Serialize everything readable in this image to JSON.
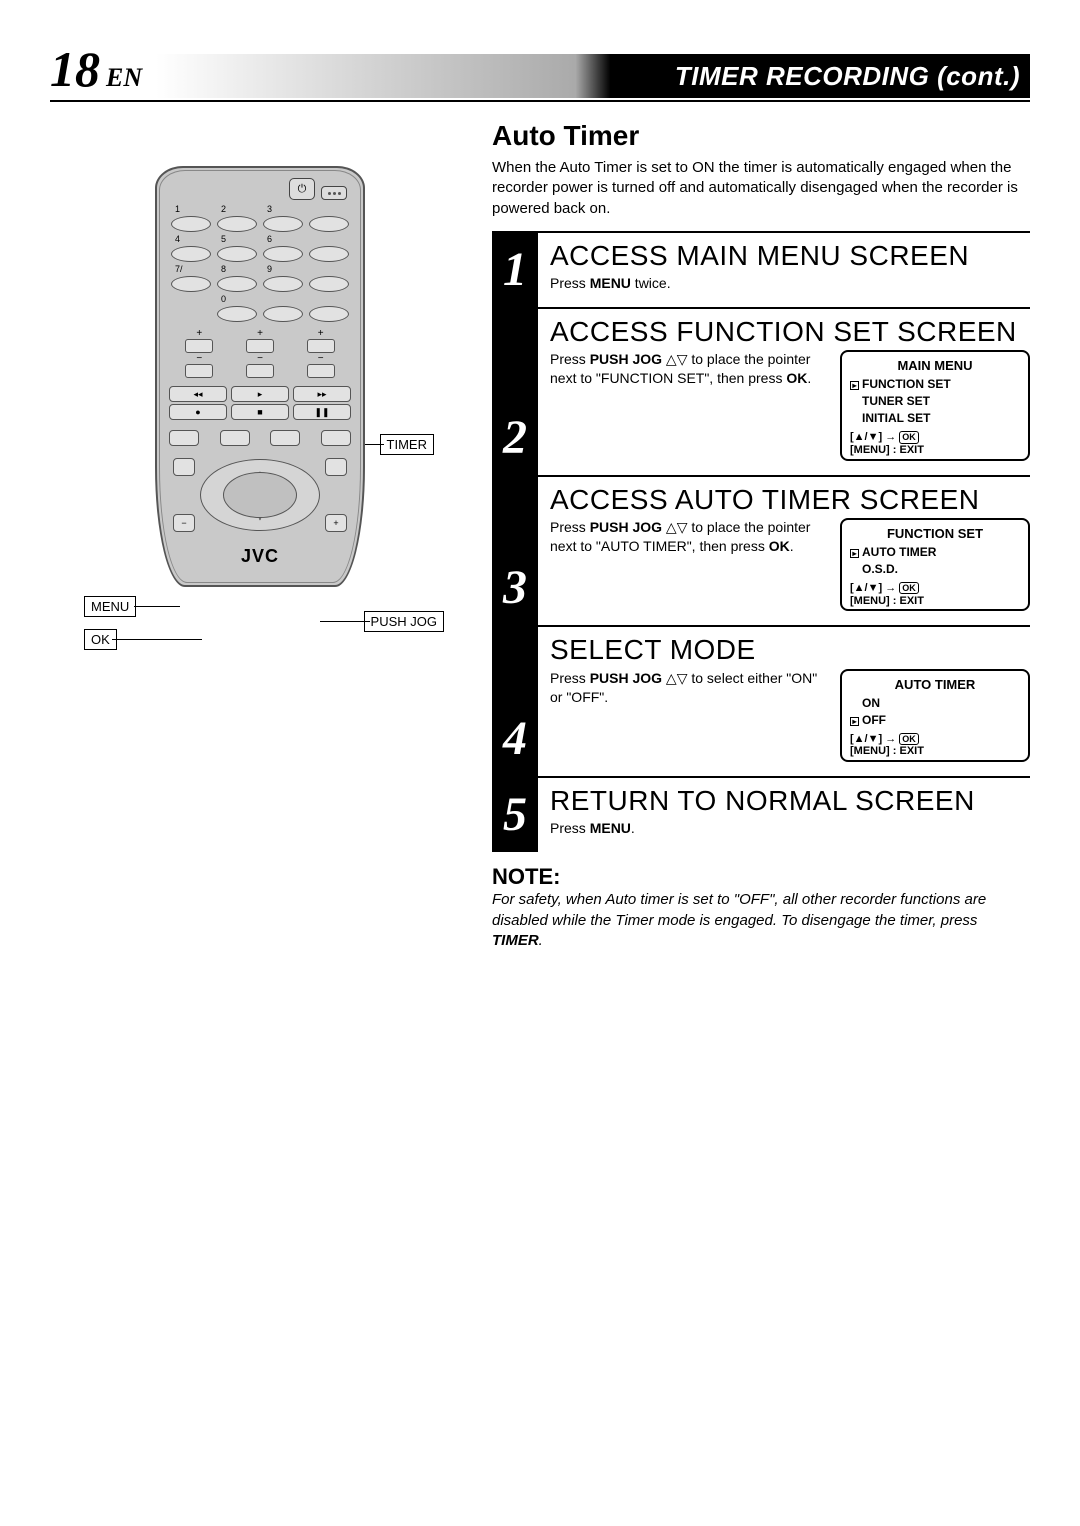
{
  "header": {
    "page_number": "18",
    "lang": "EN",
    "title": "TIMER RECORDING (cont.)"
  },
  "section": {
    "title": "Auto Timer",
    "intro": "When the Auto Timer is set to ON the timer is automatically engaged when the recorder power is turned off and automatically disengaged when the recorder is powered back on."
  },
  "remote": {
    "brand": "JVC",
    "callouts": {
      "timer": "TIMER",
      "menu": "MENU",
      "ok": "OK",
      "push_jog": "PUSH JOG"
    },
    "numpad_labels": [
      "1",
      "2",
      "3",
      "",
      "4",
      "5",
      "6",
      "",
      "7/",
      "8",
      "9",
      "",
      "",
      "0",
      "",
      ""
    ]
  },
  "steps": [
    {
      "num": "1",
      "heading": "ACCESS MAIN MENU SCREEN",
      "text_html": "Press <b>MENU</b> twice.",
      "menu": null
    },
    {
      "num": "2",
      "heading": "ACCESS FUNCTION SET SCREEN",
      "text_html": "Press <b>PUSH JOG</b> △▽ to place the pointer next to \"FUNCTION SET\", then press <b>OK</b>.",
      "menu": {
        "title": "MAIN MENU",
        "items": [
          "FUNCTION SET",
          "TUNER SET",
          "INITIAL SET"
        ],
        "pointer_index": 0,
        "hint": "[▲/▼] → OK\n[MENU] : EXIT"
      }
    },
    {
      "num": "3",
      "heading": "ACCESS AUTO TIMER SCREEN",
      "text_html": "Press <b>PUSH JOG</b> △▽ to place the pointer next to \"AUTO TIMER\", then press <b>OK</b>.",
      "menu": {
        "title": "FUNCTION SET",
        "items": [
          "AUTO TIMER",
          "O.S.D."
        ],
        "pointer_index": 0,
        "hint": "[▲/▼] → OK\n[MENU] : EXIT"
      }
    },
    {
      "num": "4",
      "heading": "SELECT MODE",
      "text_html": "Press <b>PUSH JOG</b> △▽ to select either \"ON\" or \"OFF\".",
      "menu": {
        "title": "AUTO TIMER",
        "items": [
          "ON",
          "OFF"
        ],
        "pointer_index": 1,
        "hint": "[▲/▼] → OK\n[MENU] : EXIT"
      }
    },
    {
      "num": "5",
      "heading": "RETURN TO NORMAL SCREEN",
      "text_html": "Press <b>MENU</b>.",
      "menu": null
    }
  ],
  "note": {
    "title": "NOTE:",
    "text_html": "For safety, when Auto timer is set to \"OFF\", all other recorder functions are disabled while the Timer mode is engaged. To disengage the timer, press <b>TIMER</b>."
  },
  "colors": {
    "text": "#000000",
    "bg": "#ffffff",
    "remote_body": "#c9c9c9",
    "step_num_bg": "#000000"
  }
}
